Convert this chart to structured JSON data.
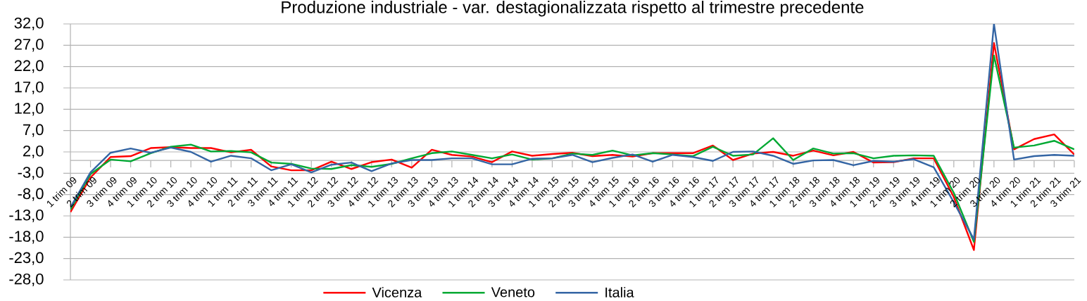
{
  "chart_data": {
    "type": "line",
    "title": "Produzione industriale - var. destagionalizzata rispetto al trimestre precedente",
    "categories": [
      "1 trim 09",
      "2 trim 09",
      "3 trim 09",
      "4 trim 09",
      "1 trim 10",
      "2 trim 10",
      "3 trim 10",
      "4 trim 10",
      "1 trim 11",
      "2 trim 11",
      "3 trim 11",
      "4 trim 11",
      "1 trim 12",
      "2 trim 12",
      "3 trim 12",
      "4 trim 12",
      "1 trim 13",
      "2 trim 13",
      "3 trim 13",
      "4 trim 13",
      "1 trim 14",
      "2 trim 14",
      "3 trim 14",
      "4 trim 14",
      "1 trim 15",
      "2 trim 15",
      "3 trim 15",
      "4 trim 15",
      "1 trim 16",
      "2 trim 16",
      "3 trim 16",
      "4 trim 16",
      "1 trim 17",
      "2 trim 17",
      "3 trim 17",
      "4 trim 17",
      "1 trim 18",
      "2 trim 18",
      "3 trim 18",
      "4 trim 18",
      "1 trim 19",
      "2 trim 19",
      "3 trim 19",
      "4 trim 19",
      "1 trim 20",
      "2 trim 20",
      "3 trim 20",
      "4 trim 20",
      "1 trim 21",
      "2 trim 21",
      "3 trim 21"
    ],
    "series": [
      {
        "name": "Vicenza",
        "color": "#ff0000",
        "values": [
          -12.1,
          -4.0,
          0.8,
          1.0,
          2.9,
          3.1,
          2.9,
          2.9,
          1.9,
          2.5,
          -1.4,
          -2.3,
          -2.3,
          -0.3,
          -2.0,
          -0.4,
          0.2,
          -1.7,
          2.5,
          1.3,
          0.9,
          -0.4,
          2.1,
          1.1,
          1.5,
          1.8,
          1.0,
          1.3,
          0.9,
          1.7,
          1.7,
          1.7,
          3.5,
          0.1,
          1.6,
          2.0,
          1.1,
          2.3,
          1.2,
          2.0,
          -0.5,
          -0.4,
          0.5,
          0.5,
          -8.6,
          -21.0,
          27.5,
          2.6,
          5.0,
          6.1,
          1.4
        ]
      },
      {
        "name": "Veneto",
        "color": "#00a933",
        "values": [
          -11.5,
          -3.2,
          0.2,
          -0.2,
          1.7,
          3.2,
          3.7,
          2.1,
          2.2,
          1.9,
          -0.5,
          -0.8,
          -1.9,
          -2.0,
          -1.1,
          -1.5,
          -0.8,
          0.5,
          1.7,
          2.1,
          1.3,
          0.5,
          1.4,
          0.2,
          0.5,
          1.6,
          1.3,
          2.3,
          1.2,
          1.7,
          1.4,
          1.0,
          3.2,
          1.1,
          1.4,
          5.2,
          0.1,
          2.8,
          1.6,
          1.7,
          0.5,
          1.1,
          1.2,
          1.1,
          -7.6,
          -19.1,
          24.6,
          3.0,
          3.5,
          4.6,
          2.6
        ]
      },
      {
        "name": "Italia",
        "color": "#3465a4",
        "values": [
          -11.0,
          -2.8,
          1.8,
          2.8,
          1.8,
          3.0,
          2.0,
          -0.3,
          1.1,
          0.5,
          -2.3,
          -0.9,
          -2.8,
          -1.0,
          -0.5,
          -2.5,
          -0.7,
          0.1,
          0.1,
          0.5,
          0.5,
          -0.9,
          -0.9,
          0.4,
          0.5,
          1.3,
          -0.4,
          0.6,
          1.4,
          -0.3,
          1.3,
          0.8,
          -0.1,
          2.0,
          2.1,
          1.1,
          -0.8,
          0.0,
          0.1,
          -1.1,
          -0.1,
          -0.3,
          0.3,
          -1.6,
          -9.8,
          -18.5,
          32,
          0.2,
          1.0,
          1.3,
          1.1
        ]
      }
    ],
    "ylim": [
      -28,
      32
    ],
    "yticks": [
      {
        "value": -28,
        "label": "-28,0"
      },
      {
        "value": -23,
        "label": "-23,0"
      },
      {
        "value": -18,
        "label": "-18,0"
      },
      {
        "value": -13,
        "label": "-13,0"
      },
      {
        "value": -8,
        "label": "-8,0"
      },
      {
        "value": -3,
        "label": "-3,0"
      },
      {
        "value": 2,
        "label": "2,0"
      },
      {
        "value": 7,
        "label": "7,0"
      },
      {
        "value": 12,
        "label": "12,0"
      },
      {
        "value": 17,
        "label": "17,0"
      },
      {
        "value": 22,
        "label": "22,0"
      },
      {
        "value": 27,
        "label": "27,0"
      },
      {
        "value": 32,
        "label": "32,0"
      }
    ],
    "grid": "y",
    "legend": "bottom"
  }
}
